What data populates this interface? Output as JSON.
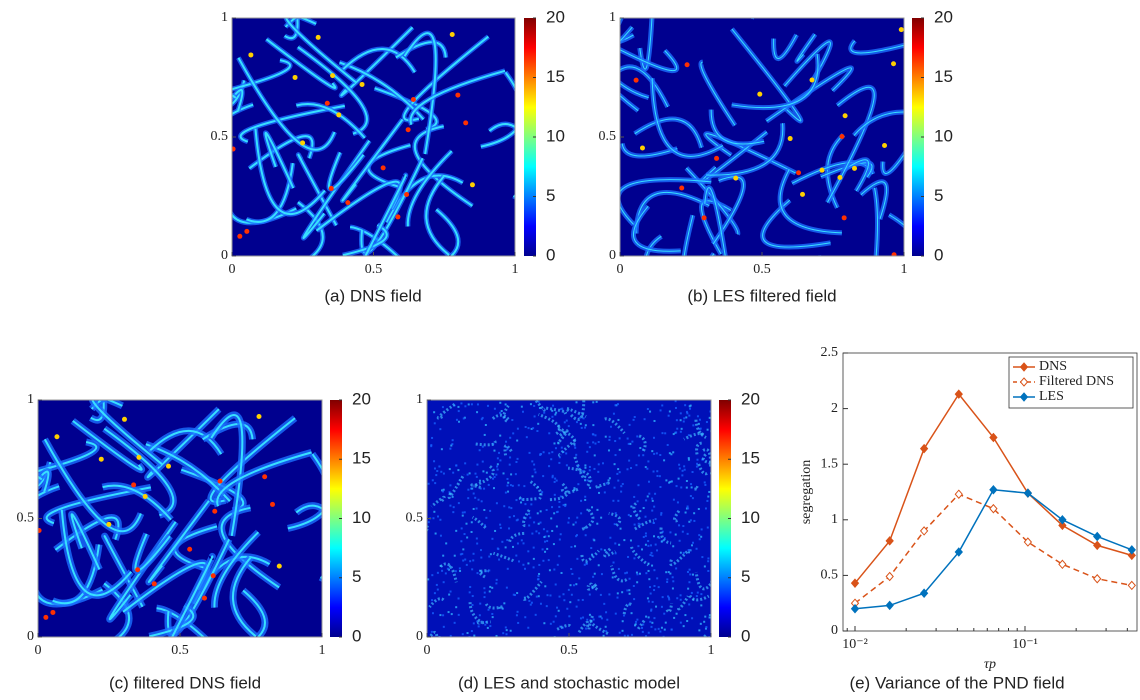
{
  "chart_data": [
    {
      "type": "heatmap",
      "caption": "(a)  DNS field",
      "xlim": [
        0,
        1
      ],
      "ylim": [
        0,
        1
      ],
      "xticks": [
        0,
        0.5,
        1
      ],
      "yticks": [
        0,
        0.5,
        1
      ],
      "clim": [
        0,
        20
      ],
      "cticks": [
        0,
        5,
        10,
        15,
        20
      ]
    },
    {
      "type": "heatmap",
      "caption": "(b)  LES filtered field",
      "xlim": [
        0,
        1
      ],
      "ylim": [
        0,
        1
      ],
      "xticks": [
        0,
        0.5,
        1
      ],
      "yticks": [
        0,
        0.5,
        1
      ],
      "clim": [
        0,
        20
      ],
      "cticks": [
        0,
        5,
        10,
        15,
        20
      ]
    },
    {
      "type": "heatmap",
      "caption": "(c)  filtered DNS field",
      "xlim": [
        0,
        1
      ],
      "ylim": [
        0,
        1
      ],
      "xticks": [
        0,
        0.5,
        1
      ],
      "yticks": [
        0,
        0.5,
        1
      ],
      "clim": [
        0,
        20
      ],
      "cticks": [
        0,
        5,
        10,
        15,
        20
      ]
    },
    {
      "type": "heatmap",
      "caption": "(d)  LES and stochastic model",
      "xlim": [
        0,
        1
      ],
      "ylim": [
        0,
        1
      ],
      "xticks": [
        0,
        0.5,
        1
      ],
      "yticks": [
        0,
        0.5,
        1
      ],
      "clim": [
        0,
        20
      ],
      "cticks": [
        0,
        5,
        10,
        15,
        20
      ]
    },
    {
      "type": "line",
      "caption": "(e)  Variance of the PND field",
      "xlabel": "τp",
      "ylabel": "segregation",
      "log_x": true,
      "legend": "upper right",
      "x": [
        0.01,
        0.016,
        0.0255,
        0.0408,
        0.0652,
        0.104,
        0.166,
        0.266,
        0.425
      ],
      "xlim": [
        0.0085,
        0.456
      ],
      "xticks": [
        {
          "value": 0.01,
          "label": "10⁻²"
        },
        {
          "value": 0.1,
          "label": "10⁻¹"
        }
      ],
      "ylim": [
        0,
        2.5
      ],
      "yticks": [
        0,
        0.5,
        1,
        1.5,
        2,
        2.5
      ],
      "series": [
        {
          "name": "DNS",
          "color": "#d95319",
          "linestyle": "solid",
          "marker_filled": true,
          "values": [
            0.43,
            0.81,
            1.64,
            2.13,
            1.74,
            1.24,
            0.95,
            0.77,
            0.68
          ]
        },
        {
          "name": "Filtered DNS",
          "color": "#d95319",
          "linestyle": "dashed",
          "marker_filled": false,
          "values": [
            0.25,
            0.49,
            0.9,
            1.23,
            1.1,
            0.8,
            0.6,
            0.47,
            0.41
          ]
        },
        {
          "name": "LES",
          "color": "#0072bd",
          "linestyle": "solid",
          "marker_filled": true,
          "values": [
            0.2,
            0.23,
            0.34,
            0.71,
            1.27,
            1.24,
            1.0,
            0.85,
            0.73
          ]
        }
      ]
    }
  ]
}
